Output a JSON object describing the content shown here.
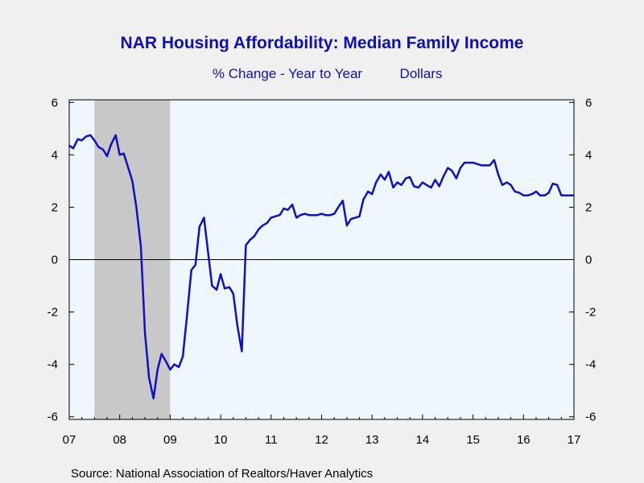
{
  "chart_data": {
    "type": "line",
    "title": "NAR Housing Affordability: Median Family Income",
    "subtitle_left": "% Change - Year to Year",
    "subtitle_right": "Dollars",
    "source": "Source:  National Association of Realtors/Haver Analytics",
    "x_tick_labels": [
      "07",
      "08",
      "09",
      "10",
      "11",
      "12",
      "13",
      "14",
      "15",
      "16",
      "17"
    ],
    "x_range": [
      2007.0,
      2017.0
    ],
    "y_left_ticks": [
      "6",
      "4",
      "2",
      "0",
      "-2",
      "-4",
      "-6"
    ],
    "y_right_ticks": [
      "6",
      "4",
      "2",
      "0",
      "-2",
      "-4",
      "-6"
    ],
    "ylim": [
      -6.1,
      6.1
    ],
    "recession_shading": [
      2007.5,
      2009.0
    ],
    "colors": {
      "line": "#1010c0",
      "plot_background": "#eef6fe",
      "recession": "#c8c8c8",
      "title": "#1010b0"
    },
    "series": [
      {
        "x": [
          2007.0,
          2007.08,
          2007.17,
          2007.25,
          2007.33,
          2007.42,
          2007.5,
          2007.58,
          2007.67,
          2007.75,
          2007.83,
          2007.92,
          2008.0,
          2008.08,
          2008.17,
          2008.25,
          2008.33,
          2008.42,
          2008.5,
          2008.58,
          2008.67,
          2008.75,
          2008.83,
          2008.92,
          2009.0,
          2009.08,
          2009.17,
          2009.25,
          2009.33,
          2009.42,
          2009.5,
          2009.58,
          2009.67,
          2009.75,
          2009.83,
          2009.92,
          2010.0,
          2010.08,
          2010.17,
          2010.25,
          2010.33,
          2010.42,
          2010.5,
          2010.58,
          2010.67,
          2010.75,
          2010.83,
          2010.92,
          2011.0,
          2011.08,
          2011.17,
          2011.25,
          2011.33,
          2011.42,
          2011.5,
          2011.58,
          2011.67,
          2011.75,
          2011.83,
          2011.92,
          2012.0,
          2012.08,
          2012.17,
          2012.25,
          2012.33,
          2012.42,
          2012.5,
          2012.58,
          2012.67,
          2012.75,
          2012.83,
          2012.92,
          2013.0,
          2013.08,
          2013.17,
          2013.25,
          2013.33,
          2013.42,
          2013.5,
          2013.58,
          2013.67,
          2013.75,
          2013.83,
          2013.92,
          2014.0,
          2014.08,
          2014.17,
          2014.25,
          2014.33,
          2014.42,
          2014.5,
          2014.58,
          2014.67,
          2014.75,
          2014.83,
          2014.92,
          2015.0,
          2015.08,
          2015.17,
          2015.25,
          2015.33,
          2015.42,
          2015.5,
          2015.58,
          2015.67,
          2015.75,
          2015.83,
          2015.92,
          2016.0,
          2016.08,
          2016.17,
          2016.25,
          2016.33,
          2016.42,
          2016.5,
          2016.58,
          2016.67,
          2016.75,
          2016.83,
          2016.92,
          2017.0
        ],
        "values": [
          4.35,
          4.25,
          4.6,
          4.55,
          4.7,
          4.75,
          4.55,
          4.3,
          4.2,
          3.95,
          4.4,
          4.75,
          4.0,
          4.05,
          3.5,
          3.0,
          2.0,
          0.5,
          -2.8,
          -4.5,
          -5.3,
          -4.2,
          -3.6,
          -3.9,
          -4.2,
          -4.0,
          -4.1,
          -3.7,
          -2.2,
          -0.4,
          -0.2,
          1.25,
          1.6,
          0.3,
          -1.0,
          -1.15,
          -0.55,
          -1.1,
          -1.05,
          -1.3,
          -2.5,
          -3.5,
          0.55,
          0.75,
          0.9,
          1.15,
          1.3,
          1.4,
          1.6,
          1.65,
          1.7,
          1.95,
          1.9,
          2.1,
          1.6,
          1.7,
          1.75,
          1.7,
          1.7,
          1.7,
          1.75,
          1.7,
          1.7,
          1.75,
          2.0,
          2.25,
          1.3,
          1.55,
          1.6,
          1.65,
          2.3,
          2.6,
          2.5,
          2.95,
          3.25,
          3.05,
          3.35,
          2.75,
          2.95,
          2.85,
          3.1,
          3.15,
          2.8,
          2.75,
          2.95,
          2.85,
          2.75,
          3.05,
          2.8,
          3.2,
          3.5,
          3.4,
          3.1,
          3.5,
          3.7,
          3.7,
          3.7,
          3.65,
          3.6,
          3.6,
          3.6,
          3.8,
          3.25,
          2.85,
          2.95,
          2.85,
          2.6,
          2.55,
          2.45,
          2.45,
          2.5,
          2.6,
          2.45,
          2.45,
          2.55,
          2.9,
          2.85,
          2.45,
          2.45,
          2.45,
          2.45
        ]
      }
    ]
  }
}
